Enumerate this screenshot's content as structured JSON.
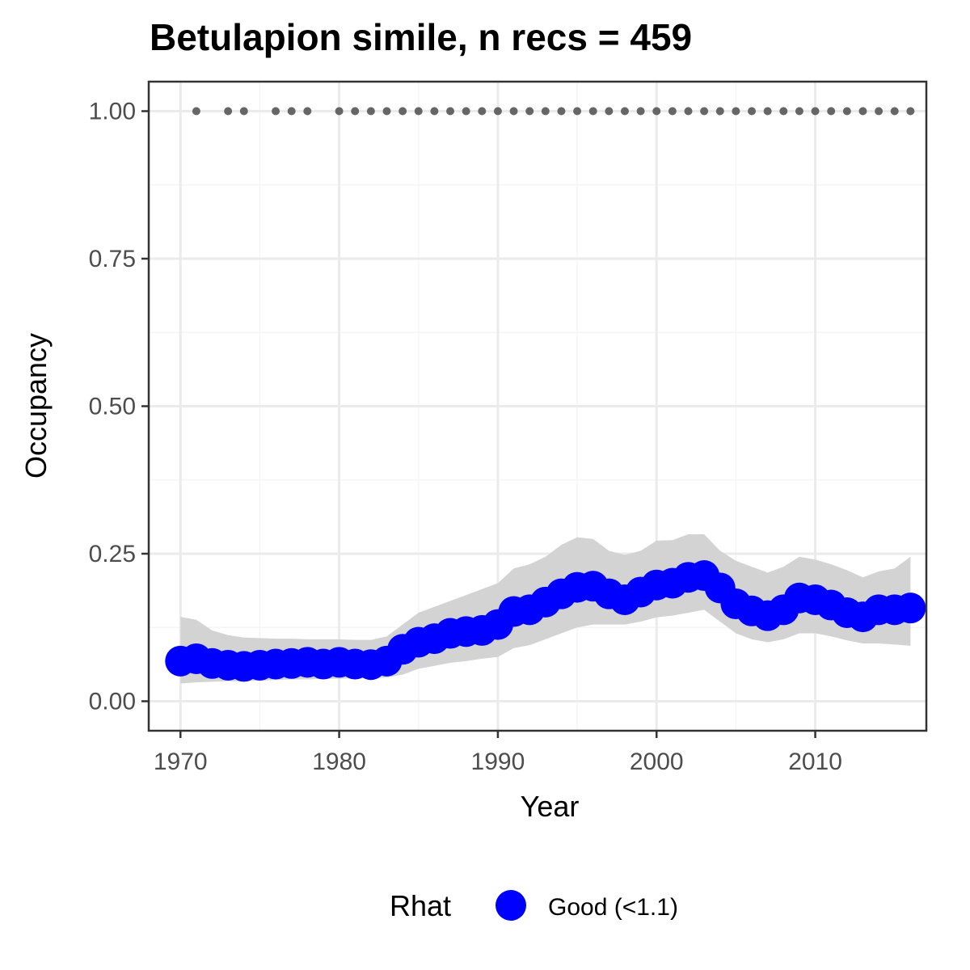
{
  "chart_data": {
    "type": "line",
    "title": "Betulapion simile, n recs = 459",
    "xlabel": "Year",
    "ylabel": "Occupancy",
    "xlim": [
      1968,
      2017
    ],
    "ylim": [
      -0.05,
      1.05
    ],
    "x_ticks": [
      1970,
      1980,
      1990,
      2000,
      2010
    ],
    "x_tick_labels": [
      "1970",
      "1980",
      "1990",
      "2000",
      "2010"
    ],
    "y_ticks": [
      0,
      0.25,
      0.5,
      0.75,
      1.0
    ],
    "y_tick_labels": [
      "0.00",
      "0.25",
      "0.50",
      "0.75",
      "1.00"
    ],
    "grid": true,
    "years": [
      1970,
      1971,
      1972,
      1973,
      1974,
      1975,
      1976,
      1977,
      1978,
      1979,
      1980,
      1981,
      1982,
      1983,
      1984,
      1985,
      1986,
      1987,
      1988,
      1989,
      1990,
      1991,
      1992,
      1993,
      1994,
      1995,
      1996,
      1997,
      1998,
      1999,
      2000,
      2001,
      2002,
      2003,
      2004,
      2005,
      2006,
      2007,
      2008,
      2009,
      2010,
      2011,
      2012,
      2013,
      2014,
      2015,
      2016
    ],
    "occupancy": [
      0.068,
      0.072,
      0.064,
      0.061,
      0.059,
      0.061,
      0.063,
      0.064,
      0.066,
      0.063,
      0.066,
      0.063,
      0.062,
      0.068,
      0.088,
      0.1,
      0.106,
      0.115,
      0.118,
      0.12,
      0.13,
      0.152,
      0.155,
      0.168,
      0.182,
      0.193,
      0.195,
      0.182,
      0.172,
      0.185,
      0.197,
      0.2,
      0.21,
      0.213,
      0.192,
      0.165,
      0.153,
      0.145,
      0.155,
      0.175,
      0.172,
      0.163,
      0.15,
      0.143,
      0.155,
      0.155,
      0.158
    ],
    "ci_lower": [
      0.03,
      0.032,
      0.033,
      0.034,
      0.034,
      0.035,
      0.036,
      0.037,
      0.037,
      0.038,
      0.038,
      0.039,
      0.039,
      0.04,
      0.045,
      0.055,
      0.06,
      0.065,
      0.068,
      0.072,
      0.075,
      0.09,
      0.095,
      0.105,
      0.115,
      0.125,
      0.13,
      0.13,
      0.13,
      0.135,
      0.142,
      0.145,
      0.15,
      0.155,
      0.135,
      0.115,
      0.105,
      0.1,
      0.105,
      0.115,
      0.115,
      0.11,
      0.103,
      0.098,
      0.098,
      0.096,
      0.094
    ],
    "ci_upper": [
      0.143,
      0.138,
      0.12,
      0.112,
      0.108,
      0.107,
      0.106,
      0.106,
      0.105,
      0.105,
      0.105,
      0.104,
      0.104,
      0.11,
      0.13,
      0.15,
      0.16,
      0.17,
      0.18,
      0.19,
      0.2,
      0.225,
      0.232,
      0.245,
      0.265,
      0.278,
      0.275,
      0.255,
      0.248,
      0.255,
      0.272,
      0.273,
      0.283,
      0.283,
      0.255,
      0.238,
      0.228,
      0.218,
      0.228,
      0.245,
      0.24,
      0.232,
      0.222,
      0.21,
      0.22,
      0.225,
      0.245
    ],
    "records_years": [
      1971,
      1973,
      1974,
      1976,
      1977,
      1978,
      1980,
      1981,
      1982,
      1983,
      1984,
      1985,
      1986,
      1987,
      1988,
      1989,
      1990,
      1991,
      1992,
      1993,
      1994,
      1995,
      1996,
      1997,
      1998,
      1999,
      2000,
      2001,
      2002,
      2003,
      2004,
      2005,
      2006,
      2007,
      2008,
      2009,
      2010,
      2011,
      2012,
      2013,
      2014,
      2015,
      2016
    ],
    "records_value": 1.0,
    "colors": {
      "point": "#0000ff",
      "ribbon": "#d3d3d3",
      "record_dot": "#666666",
      "grid_major": "#ebebeb",
      "grid_minor": "#f5f5f5",
      "panel_border": "#333333",
      "tick_text": "#4d4d4d"
    },
    "legend": {
      "title": "Rhat",
      "items": [
        {
          "label": "Good (<1.1)",
          "color": "#0000ff"
        }
      ],
      "position": "bottom"
    }
  }
}
